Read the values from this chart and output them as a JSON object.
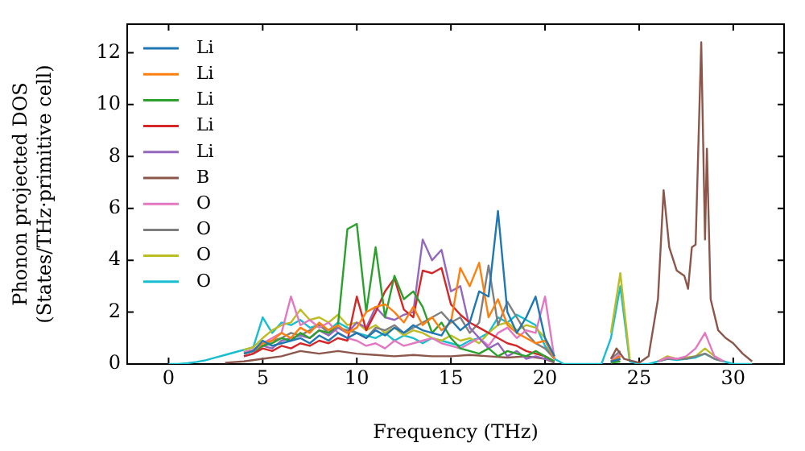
{
  "chart_data": {
    "type": "line",
    "xlabel": "Frequency (THz)",
    "ylabel": "Phonon projected DOS\n(States/THz·primitive cell)",
    "xlim": [
      -2.2,
      32.7
    ],
    "ylim": [
      0,
      13.1
    ],
    "xticks": [
      0,
      5,
      10,
      15,
      20,
      25,
      30
    ],
    "yticks": [
      0,
      2,
      4,
      6,
      8,
      10,
      12
    ],
    "grid": false,
    "legend": "top left",
    "marker": "none",
    "line_style": "solid",
    "x": [
      0,
      0.5,
      1,
      1.5,
      2,
      2.5,
      3,
      3.5,
      4,
      4.5,
      5,
      5.5,
      6,
      6.5,
      7,
      7.5,
      8,
      8.5,
      9,
      9.5,
      10,
      10.5,
      11,
      11.5,
      12,
      12.5,
      13,
      13.5,
      14,
      14.5,
      15,
      15.5,
      16,
      16.5,
      17,
      17.5,
      18,
      18.5,
      19,
      19.5,
      20,
      20.5,
      21,
      21.5,
      22,
      22.5,
      23,
      23.5,
      24,
      24.5,
      25,
      25.5,
      26,
      26.5,
      27,
      27.5,
      28,
      28.5,
      29,
      29.5,
      30,
      30.5,
      31
    ],
    "series": [
      {
        "name": "Li",
        "color": "#1f77b4",
        "values": [
          null,
          null,
          null,
          null,
          null,
          null,
          null,
          null,
          0.4,
          0.5,
          0.9,
          0.7,
          0.8,
          0.9,
          1.0,
          0.8,
          1.1,
          0.9,
          1.2,
          1.0,
          1.2,
          1.0,
          1.3,
          1.1,
          1.4,
          1.2,
          1.5,
          1.3,
          1.2,
          1.1,
          1.7,
          1.3,
          1.6,
          2.8,
          2.6,
          5.9,
          2.0,
          1.2,
          1.8,
          2.6,
          1.0,
          0.3,
          null,
          null,
          null,
          null,
          null,
          0.1,
          0.2,
          null,
          null,
          null,
          null,
          null,
          null,
          null,
          null,
          null,
          null,
          null,
          null,
          null,
          null
        ]
      },
      {
        "name": "Li",
        "color": "#ff7f0e",
        "values": [
          null,
          null,
          null,
          null,
          null,
          null,
          null,
          null,
          0.4,
          0.5,
          0.8,
          0.9,
          1.2,
          1.0,
          1.4,
          1.2,
          1.6,
          1.3,
          1.5,
          1.2,
          1.4,
          2.0,
          2.2,
          2.3,
          2.0,
          1.6,
          2.2,
          1.5,
          1.8,
          1.3,
          1.6,
          3.7,
          3.0,
          3.9,
          1.8,
          2.5,
          1.5,
          1.2,
          1.0,
          0.8,
          0.9,
          0.2,
          null,
          null,
          null,
          null,
          null,
          0.1,
          0.3,
          null,
          null,
          null,
          null,
          null,
          null,
          null,
          null,
          null,
          null,
          null,
          null,
          null,
          null
        ]
      },
      {
        "name": "Li",
        "color": "#2ca02c",
        "values": [
          null,
          null,
          null,
          null,
          null,
          null,
          null,
          null,
          0.4,
          0.5,
          0.7,
          0.8,
          1.0,
          0.9,
          1.2,
          1.0,
          1.3,
          1.2,
          1.5,
          5.2,
          5.4,
          2.0,
          4.5,
          1.8,
          3.4,
          2.5,
          2.8,
          2.2,
          1.2,
          1.6,
          1.0,
          0.6,
          0.5,
          0.4,
          0.6,
          0.3,
          0.5,
          0.4,
          0.3,
          0.5,
          0.3,
          0.1,
          null,
          null,
          null,
          null,
          null,
          0.05,
          0.1,
          null,
          null,
          null,
          null,
          null,
          null,
          null,
          null,
          null,
          null,
          null,
          null,
          null,
          null
        ]
      },
      {
        "name": "Li",
        "color": "#d62728",
        "values": [
          null,
          null,
          null,
          null,
          null,
          null,
          null,
          null,
          0.3,
          0.4,
          0.6,
          0.5,
          0.7,
          0.6,
          0.8,
          0.7,
          0.9,
          0.8,
          1.0,
          0.9,
          2.6,
          1.3,
          2.0,
          2.8,
          3.3,
          2.1,
          1.8,
          3.6,
          3.5,
          3.7,
          2.3,
          1.9,
          1.6,
          1.4,
          1.2,
          1.0,
          0.8,
          0.7,
          0.5,
          0.4,
          0.3,
          0.1,
          null,
          null,
          null,
          null,
          null,
          0.05,
          0.2,
          null,
          null,
          null,
          null,
          null,
          null,
          null,
          null,
          null,
          null,
          null,
          null,
          null,
          null
        ]
      },
      {
        "name": "Li",
        "color": "#9467bd",
        "values": [
          null,
          null,
          null,
          null,
          null,
          null,
          null,
          null,
          0.3,
          0.4,
          0.7,
          0.6,
          0.9,
          1.0,
          1.1,
          1.0,
          1.3,
          1.1,
          1.4,
          1.2,
          1.6,
          1.4,
          2.2,
          1.8,
          1.7,
          1.9,
          2.0,
          4.8,
          4.0,
          4.4,
          2.8,
          3.0,
          1.4,
          1.0,
          0.6,
          0.8,
          0.3,
          0.5,
          0.2,
          0.3,
          0.2,
          0.1,
          null,
          null,
          null,
          null,
          null,
          0.05,
          0.3,
          null,
          null,
          null,
          null,
          null,
          null,
          null,
          null,
          null,
          null,
          null,
          null,
          null,
          null
        ]
      },
      {
        "name": "B",
        "color": "#8c564b",
        "x": [
          3,
          4,
          5,
          6,
          7,
          8,
          9,
          10,
          11,
          12,
          13,
          14,
          15,
          16,
          17,
          18,
          19,
          20,
          20.5,
          21,
          23,
          23.5,
          23.8,
          24.2,
          25,
          25.5,
          26,
          26.3,
          26.6,
          27,
          27.4,
          27.6,
          27.8,
          28,
          28.3,
          28.5,
          28.6,
          28.8,
          29.2,
          29.6,
          30,
          30.5,
          31
        ],
        "values": [
          0.05,
          0.1,
          0.2,
          0.3,
          0.5,
          0.4,
          0.5,
          0.4,
          0.35,
          0.3,
          0.35,
          0.3,
          0.3,
          0.35,
          0.3,
          0.25,
          0.3,
          0.2,
          0.05,
          null,
          null,
          0.2,
          0.6,
          0.2,
          0.05,
          0.3,
          2.5,
          6.7,
          4.5,
          3.6,
          3.4,
          2.9,
          4.5,
          4.6,
          12.4,
          4.8,
          8.3,
          2.5,
          1.3,
          1.0,
          0.8,
          0.4,
          0.1
        ]
      },
      {
        "name": "O",
        "color": "#e377c2",
        "values": [
          null,
          null,
          null,
          null,
          null,
          null,
          null,
          null,
          0.45,
          0.55,
          0.8,
          1.0,
          1.2,
          2.6,
          1.5,
          1.7,
          1.4,
          1.6,
          1.2,
          1.0,
          0.9,
          0.7,
          0.8,
          0.6,
          0.9,
          0.7,
          0.8,
          0.9,
          1.0,
          0.8,
          0.7,
          0.6,
          0.8,
          1.0,
          0.7,
          1.2,
          1.4,
          1.0,
          1.3,
          1.2,
          2.6,
          0.2,
          null,
          null,
          null,
          null,
          null,
          0.1,
          0.4,
          null,
          null,
          null,
          0.1,
          0.25,
          0.2,
          0.3,
          0.6,
          1.2,
          0.3,
          0.1,
          null,
          null,
          null
        ]
      },
      {
        "name": "O",
        "color": "#7f7f7f",
        "values": [
          null,
          null,
          null,
          null,
          null,
          null,
          null,
          null,
          0.45,
          0.55,
          0.7,
          0.9,
          1.0,
          1.2,
          1.1,
          1.3,
          1.5,
          1.2,
          1.4,
          1.3,
          1.2,
          1.0,
          1.4,
          1.3,
          1.5,
          1.2,
          1.4,
          1.6,
          1.8,
          2.0,
          1.6,
          1.8,
          1.2,
          1.6,
          3.8,
          1.5,
          2.4,
          1.8,
          1.2,
          0.8,
          0.6,
          0.2,
          null,
          null,
          null,
          null,
          null,
          0.2,
          0.5,
          null,
          null,
          null,
          0.1,
          0.2,
          0.2,
          0.2,
          0.3,
          0.4,
          0.2,
          0.1,
          null,
          null,
          null
        ]
      },
      {
        "name": "O",
        "color": "#bcbd22",
        "values": [
          null,
          null,
          null,
          null,
          null,
          null,
          null,
          null,
          0.55,
          0.65,
          1.0,
          1.3,
          1.5,
          1.6,
          2.1,
          1.7,
          1.8,
          1.6,
          1.9,
          1.5,
          1.6,
          1.3,
          1.5,
          1.2,
          1.4,
          1.1,
          1.3,
          1.2,
          1.0,
          0.9,
          1.1,
          0.9,
          1.0,
          0.8,
          1.2,
          1.5,
          1.6,
          1.3,
          1.5,
          1.4,
          1.0,
          0.3,
          null,
          null,
          null,
          null,
          null,
          1.2,
          3.5,
          0.2,
          null,
          null,
          0.1,
          0.3,
          0.2,
          0.25,
          0.3,
          0.6,
          0.3,
          0.1,
          null,
          null,
          null
        ]
      },
      {
        "name": "O",
        "color": "#17becf",
        "values": [
          0,
          0,
          0.03,
          0.08,
          0.15,
          0.25,
          0.35,
          0.45,
          0.55,
          0.65,
          1.8,
          1.2,
          1.6,
          1.5,
          1.7,
          1.4,
          1.5,
          1.3,
          1.6,
          1.4,
          1.2,
          1.1,
          1.0,
          1.2,
          0.9,
          1.1,
          1.0,
          0.8,
          1.0,
          0.9,
          0.8,
          0.7,
          0.9,
          1.0,
          1.2,
          1.8,
          1.6,
          1.9,
          1.7,
          1.5,
          0.7,
          0.2,
          0,
          0,
          0,
          0,
          0,
          1.0,
          3.0,
          0.1,
          0,
          0,
          0.1,
          0.2,
          0.15,
          0.2,
          0.25,
          0.4,
          0.2,
          0.1,
          0,
          0,
          0
        ]
      }
    ]
  }
}
